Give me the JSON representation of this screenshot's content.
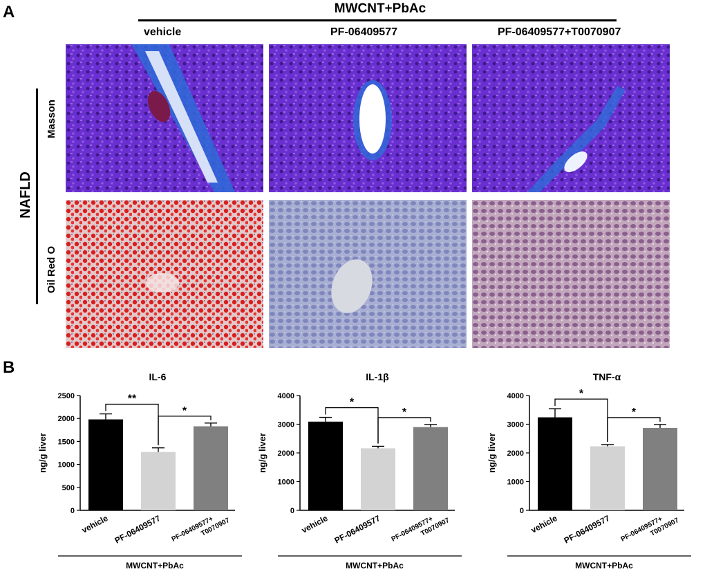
{
  "panel_a": {
    "letter": "A",
    "header": "MWCNT+PbAc",
    "columns": [
      "vehicle",
      "PF-06409577",
      "PF-06409577+T0070907"
    ],
    "rows": [
      "Masson",
      "Oil Red O"
    ],
    "group": "NAFLD",
    "colors": {
      "masson_bg": "#6a2fd0",
      "masson_vessel": "#2e6bd8",
      "oil_red_vehicle": "#d81e1e",
      "oil_bg_blue": "#8f97c8",
      "oil_bg_mix": "#9a7aa6"
    }
  },
  "panel_b": {
    "letter": "B",
    "group_label": "MWCNT+PbAc"
  },
  "chart_data": [
    {
      "type": "bar",
      "title": "IL-6",
      "ylabel": "ng/g liver",
      "categories": [
        "vehicle",
        "PF-06409577",
        "PF-06409577+\nT0070907"
      ],
      "values": [
        1980,
        1270,
        1830
      ],
      "errors": [
        120,
        90,
        70
      ],
      "colors": [
        "#000000",
        "#d3d3d3",
        "#808080"
      ],
      "ylim": [
        0,
        2500
      ],
      "yticks": [
        0,
        500,
        1000,
        1500,
        2000,
        2500
      ],
      "significance": [
        {
          "from": 0,
          "to": 1,
          "label": "**"
        },
        {
          "from": 1,
          "to": 2,
          "label": "*"
        }
      ],
      "group_label": "MWCNT+PbAc"
    },
    {
      "type": "bar",
      "title": "IL-1β",
      "ylabel": "ng/g liver",
      "categories": [
        "vehicle",
        "PF-06409577",
        "PF-06409577+\nT0070907"
      ],
      "values": [
        3090,
        2160,
        2900
      ],
      "errors": [
        150,
        70,
        90
      ],
      "colors": [
        "#000000",
        "#d3d3d3",
        "#808080"
      ],
      "ylim": [
        0,
        4000
      ],
      "yticks": [
        0,
        1000,
        2000,
        3000,
        4000
      ],
      "significance": [
        {
          "from": 0,
          "to": 1,
          "label": "*"
        },
        {
          "from": 1,
          "to": 2,
          "label": "*"
        }
      ],
      "group_label": "MWCNT+PbAc"
    },
    {
      "type": "bar",
      "title": "TNF-α",
      "ylabel": "ng/g liver",
      "categories": [
        "vehicle",
        "PF-06409577",
        "PF-06409577+\nT0070907"
      ],
      "values": [
        3240,
        2230,
        2870
      ],
      "errors": [
        300,
        60,
        120
      ],
      "colors": [
        "#000000",
        "#d3d3d3",
        "#808080"
      ],
      "ylim": [
        0,
        4000
      ],
      "yticks": [
        0,
        1000,
        2000,
        3000,
        4000
      ],
      "significance": [
        {
          "from": 0,
          "to": 1,
          "label": "*"
        },
        {
          "from": 1,
          "to": 2,
          "label": "*"
        }
      ],
      "group_label": "MWCNT+PbAc"
    }
  ]
}
